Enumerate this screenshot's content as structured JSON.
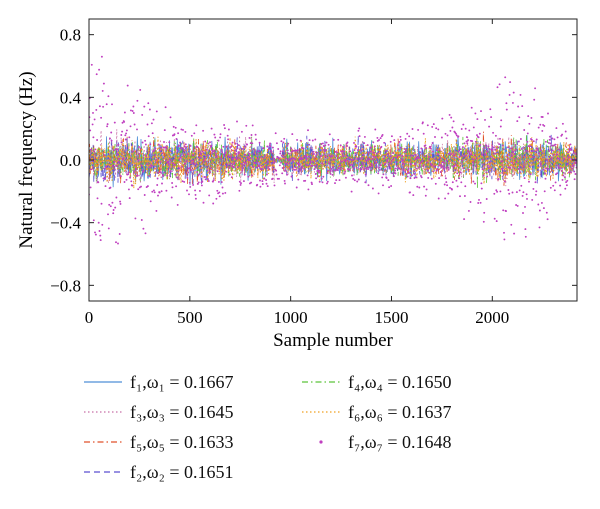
{
  "chart_data": {
    "type": "scatter",
    "xlabel": "Sample number",
    "ylabel": "Natural frequency (Hz)",
    "xlim": [
      0,
      2420
    ],
    "ylim": [
      -0.9,
      0.9
    ],
    "x_ticks": [
      0,
      500,
      1000,
      1500,
      2000
    ],
    "x_tick_labels": [
      "0",
      "500",
      "1000",
      "1500",
      "2000"
    ],
    "y_ticks": [
      -0.8,
      -0.4,
      0.0,
      0.4,
      0.8
    ],
    "y_tick_labels": [
      "−0.8",
      "−0.4",
      "0.0",
      "0.4",
      "0.8"
    ],
    "n_samples": 2420,
    "grid": false,
    "legend_position": "bottom",
    "series": [
      {
        "key": "s1",
        "label": "f₁,ω₁ = 0.1667",
        "omega": 0.1667,
        "style": "solid",
        "color": "#4f8fd6"
      },
      {
        "key": "s3",
        "label": "f₃,ω₃ = 0.1645",
        "omega": 0.1645,
        "style": "dotted",
        "color": "#c86fa6"
      },
      {
        "key": "s5",
        "label": "f₅,ω₅ = 0.1633",
        "omega": 0.1633,
        "style": "dashdot",
        "color": "#e0522a"
      },
      {
        "key": "s2",
        "label": "f₂,ω₂ = 0.1651",
        "omega": 0.1651,
        "style": "dashed",
        "color": "#5a4fd0"
      },
      {
        "key": "s4",
        "label": "f₄,ω₄ = 0.1650",
        "omega": 0.165,
        "style": "dashdot",
        "color": "#5cc43a"
      },
      {
        "key": "s6",
        "label": "f₆,ω₆ = 0.1637",
        "omega": 0.1637,
        "style": "dotted",
        "color": "#f0a020"
      },
      {
        "key": "s7",
        "label": "f₇,ω₇ = 0.1648",
        "omega": 0.1648,
        "style": "points",
        "color": "#c03fc0"
      }
    ],
    "noise_envelope": {
      "description_points": [
        {
          "x": 0,
          "core": 0.12,
          "spread": 0.75
        },
        {
          "x": 400,
          "core": 0.12,
          "spread": 0.35
        },
        {
          "x": 900,
          "core": 0.1,
          "spread": 0.2
        },
        {
          "x": 1200,
          "core": 0.1,
          "spread": 0.2
        },
        {
          "x": 1700,
          "core": 0.1,
          "spread": 0.25
        },
        {
          "x": 2100,
          "core": 0.12,
          "spread": 0.6
        },
        {
          "x": 2420,
          "core": 0.1,
          "spread": 0.2
        }
      ]
    }
  }
}
